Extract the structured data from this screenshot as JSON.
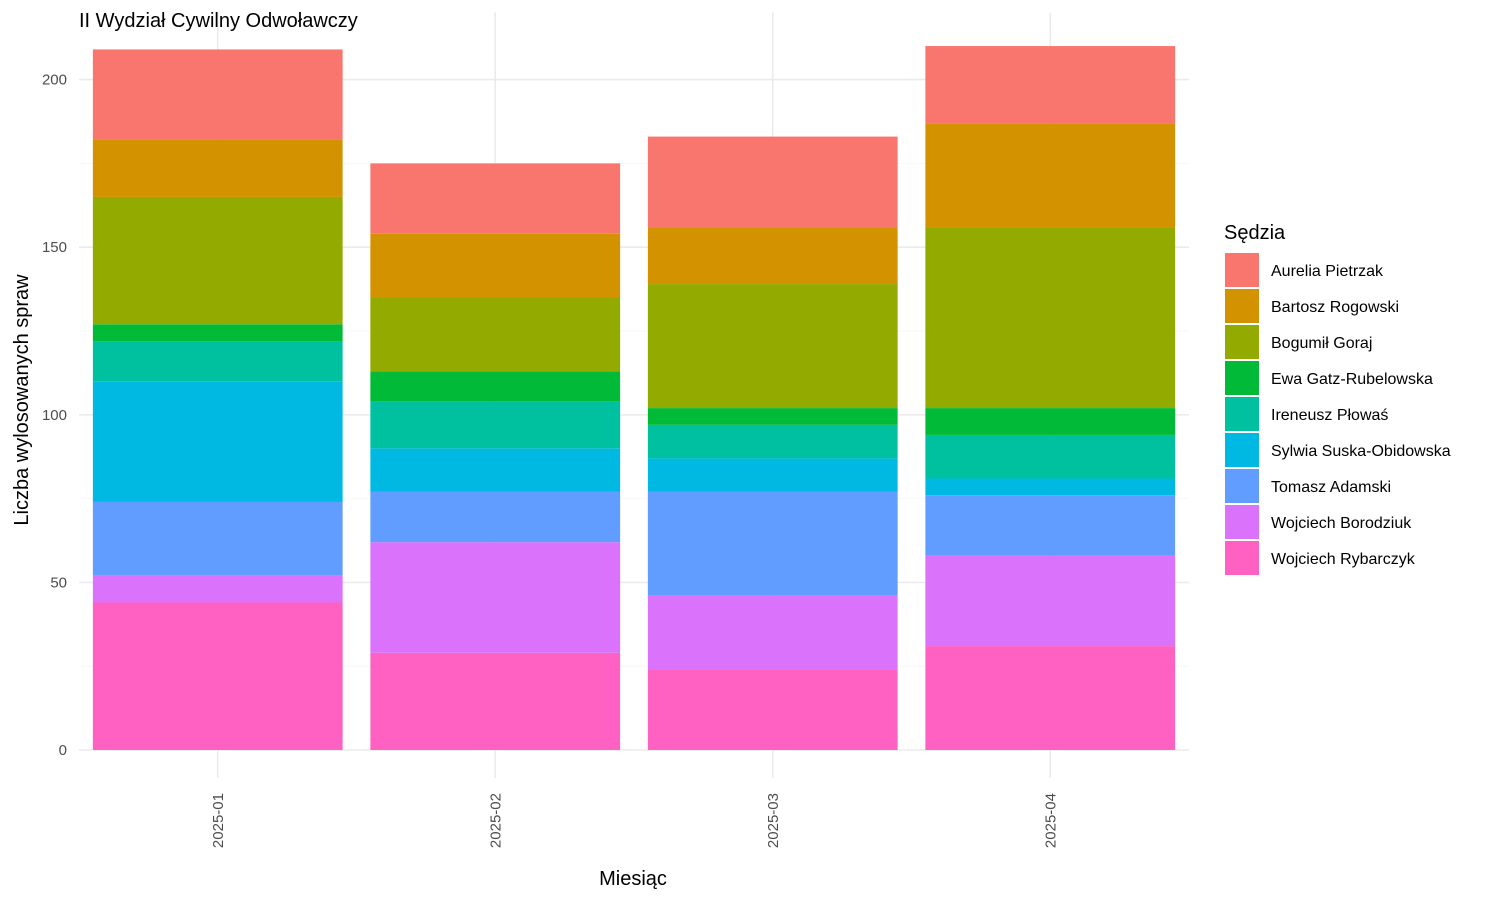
{
  "chart_data": {
    "type": "bar",
    "stacked": true,
    "title": "II Wydział Cywilny Odwoławczy",
    "xlabel": "Miesiąc",
    "ylabel": "Liczba wylosowanych spraw",
    "categories": [
      "2025-01",
      "2025-02",
      "2025-03",
      "2025-04"
    ],
    "ylim": [
      0,
      220
    ],
    "yticks": [
      0,
      50,
      100,
      150,
      200
    ],
    "legend_title": "Sędzia",
    "legend_position": "right",
    "grid": true,
    "series": [
      {
        "name": "Wojciech Rybarczyk",
        "color": "#FF61C3",
        "values": [
          44,
          29,
          24,
          31
        ]
      },
      {
        "name": "Wojciech Borodziuk",
        "color": "#DB72FB",
        "values": [
          8,
          33,
          22,
          27
        ]
      },
      {
        "name": "Tomasz Adamski",
        "color": "#619CFF",
        "values": [
          22,
          15,
          31,
          18
        ]
      },
      {
        "name": "Sylwia Suska-Obidowska",
        "color": "#00B9E3",
        "values": [
          36,
          13,
          10,
          5
        ]
      },
      {
        "name": "Ireneusz Płowaś",
        "color": "#00C19F",
        "values": [
          12,
          14,
          10,
          13
        ]
      },
      {
        "name": "Ewa Gatz-Rubelowska",
        "color": "#00BA38",
        "values": [
          5,
          9,
          5,
          8
        ]
      },
      {
        "name": "Bogumił Goraj",
        "color": "#93AA00",
        "values": [
          38,
          22,
          37,
          54
        ]
      },
      {
        "name": "Bartosz Rogowski",
        "color": "#D39200",
        "values": [
          17,
          19,
          17,
          31
        ]
      },
      {
        "name": "Aurelia Pietrzak",
        "color": "#F8766D",
        "values": [
          27,
          21,
          27,
          23
        ]
      }
    ],
    "legend_order": [
      "Aurelia Pietrzak",
      "Bartosz Rogowski",
      "Bogumił Goraj",
      "Ewa Gatz-Rubelowska",
      "Ireneusz Płowaś",
      "Sylwia Suska-Obidowska",
      "Tomasz Adamski",
      "Wojciech Borodziuk",
      "Wojciech Rybarczyk"
    ]
  }
}
